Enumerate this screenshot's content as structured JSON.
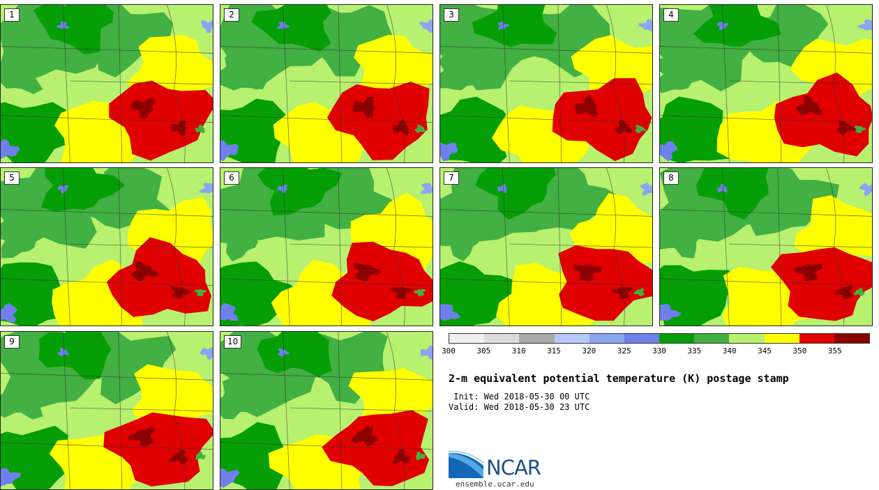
{
  "panels": [
    {
      "label": "1"
    },
    {
      "label": "2"
    },
    {
      "label": "3"
    },
    {
      "label": "4"
    },
    {
      "label": "5"
    },
    {
      "label": "6"
    },
    {
      "label": "7"
    },
    {
      "label": "8"
    },
    {
      "label": "9"
    },
    {
      "label": "10"
    }
  ],
  "colorbar": {
    "colors": [
      "#f0f0f0",
      "#dcdcdc",
      "#aaaaaa",
      "#b5c8f5",
      "#8ca5f0",
      "#6f80ec",
      "#069e06",
      "#42b042",
      "#b8f070",
      "#ffff00",
      "#e00000",
      "#8b0000"
    ],
    "tick_labels": [
      "300",
      "305",
      "310",
      "315",
      "320",
      "325",
      "330",
      "335",
      "340",
      "345",
      "350",
      "355"
    ]
  },
  "title": "2-m equivalent potential temperature (K) postage stamp",
  "init": " Init: Wed 2018-05-30 00 UTC",
  "valid": "Valid: Wed 2018-05-30 23 UTC",
  "logo": {
    "text": "NCAR",
    "url": "ensemble.ucar.edu"
  }
}
